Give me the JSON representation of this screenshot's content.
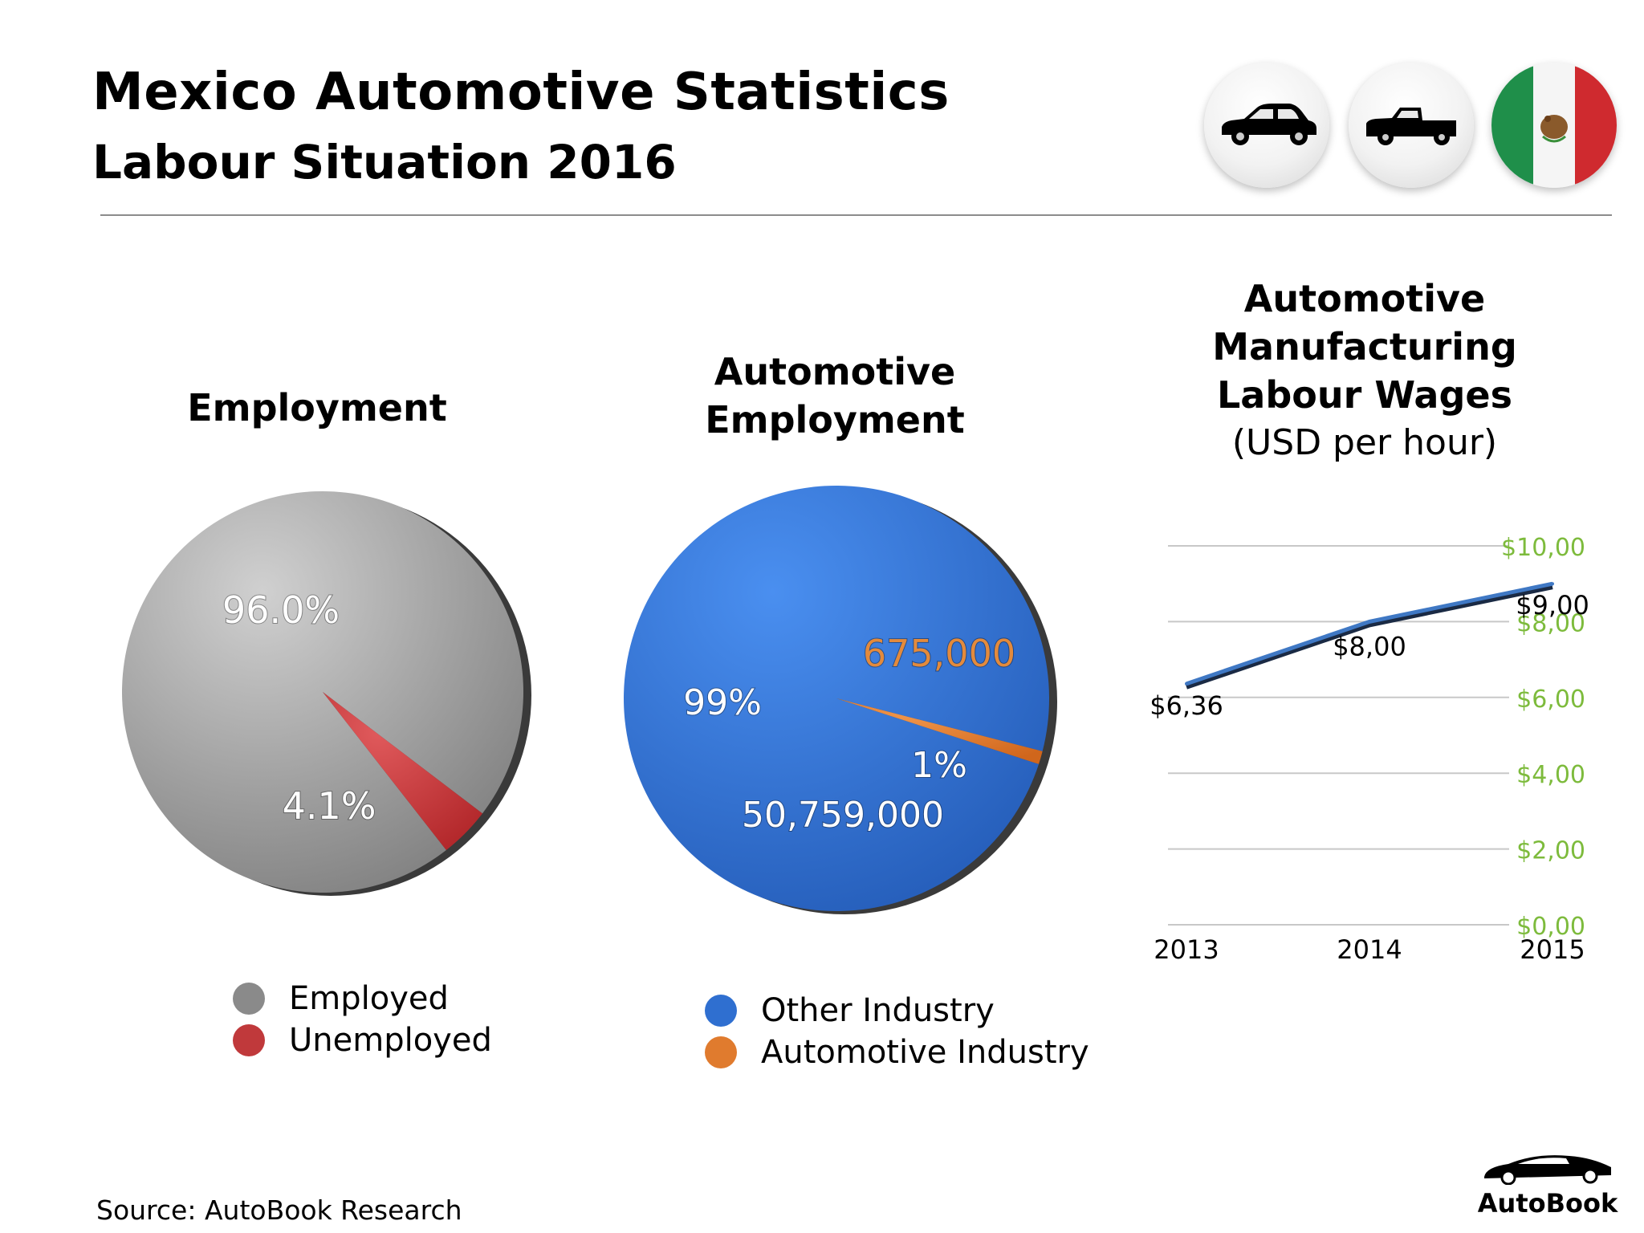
{
  "header": {
    "title": "Mexico Automotive Statistics",
    "subtitle": "Labour Situation 2016"
  },
  "icons": [
    "car-icon",
    "pickup-truck-icon",
    "mexico-flag-icon"
  ],
  "colors": {
    "employed": "#8a8a8a",
    "unemployed": "#c0393b",
    "other_industry": "#2f6fd0",
    "automotive_industry": "#e07b2e",
    "wage_line": "#3f78c4",
    "axis_label": "#7dbb3c"
  },
  "chart_data": [
    {
      "type": "pie",
      "title": "Employment",
      "slices": [
        {
          "label": "Employed",
          "value": 96.0,
          "display": "96.0%"
        },
        {
          "label": "Unemployed",
          "value": 4.1,
          "display": "4.1%"
        }
      ],
      "legend": [
        "Employed",
        "Unemployed"
      ]
    },
    {
      "type": "pie",
      "title": "Automotive Employment",
      "slices": [
        {
          "label": "Other Industry",
          "value": 99,
          "display": "99%",
          "count": "50,759,000"
        },
        {
          "label": "Automotive Industry",
          "value": 1,
          "display": "1%",
          "count": "675,000"
        }
      ],
      "legend": [
        "Other Industry",
        "Automotive Industry"
      ]
    },
    {
      "type": "line",
      "title": "Automotive Manufacturing Labour Wages",
      "subtitle": "(USD per hour)",
      "x": [
        "2013",
        "2014",
        "2015"
      ],
      "values": [
        6.36,
        8.0,
        9.0
      ],
      "data_labels": [
        "$6,36",
        "$8,00",
        "$9,00"
      ],
      "ylim": [
        0,
        10
      ],
      "yticks": [
        0,
        2,
        4,
        6,
        8,
        10
      ],
      "ytick_labels": [
        "$0,00",
        "$2,00",
        "$4,00",
        "$6,00",
        "$8,00",
        "$10,00"
      ],
      "grid": true,
      "y_axis_side": "right"
    }
  ],
  "footer": {
    "source": "Source:  AutoBook Research",
    "brand": "AutoBook"
  }
}
